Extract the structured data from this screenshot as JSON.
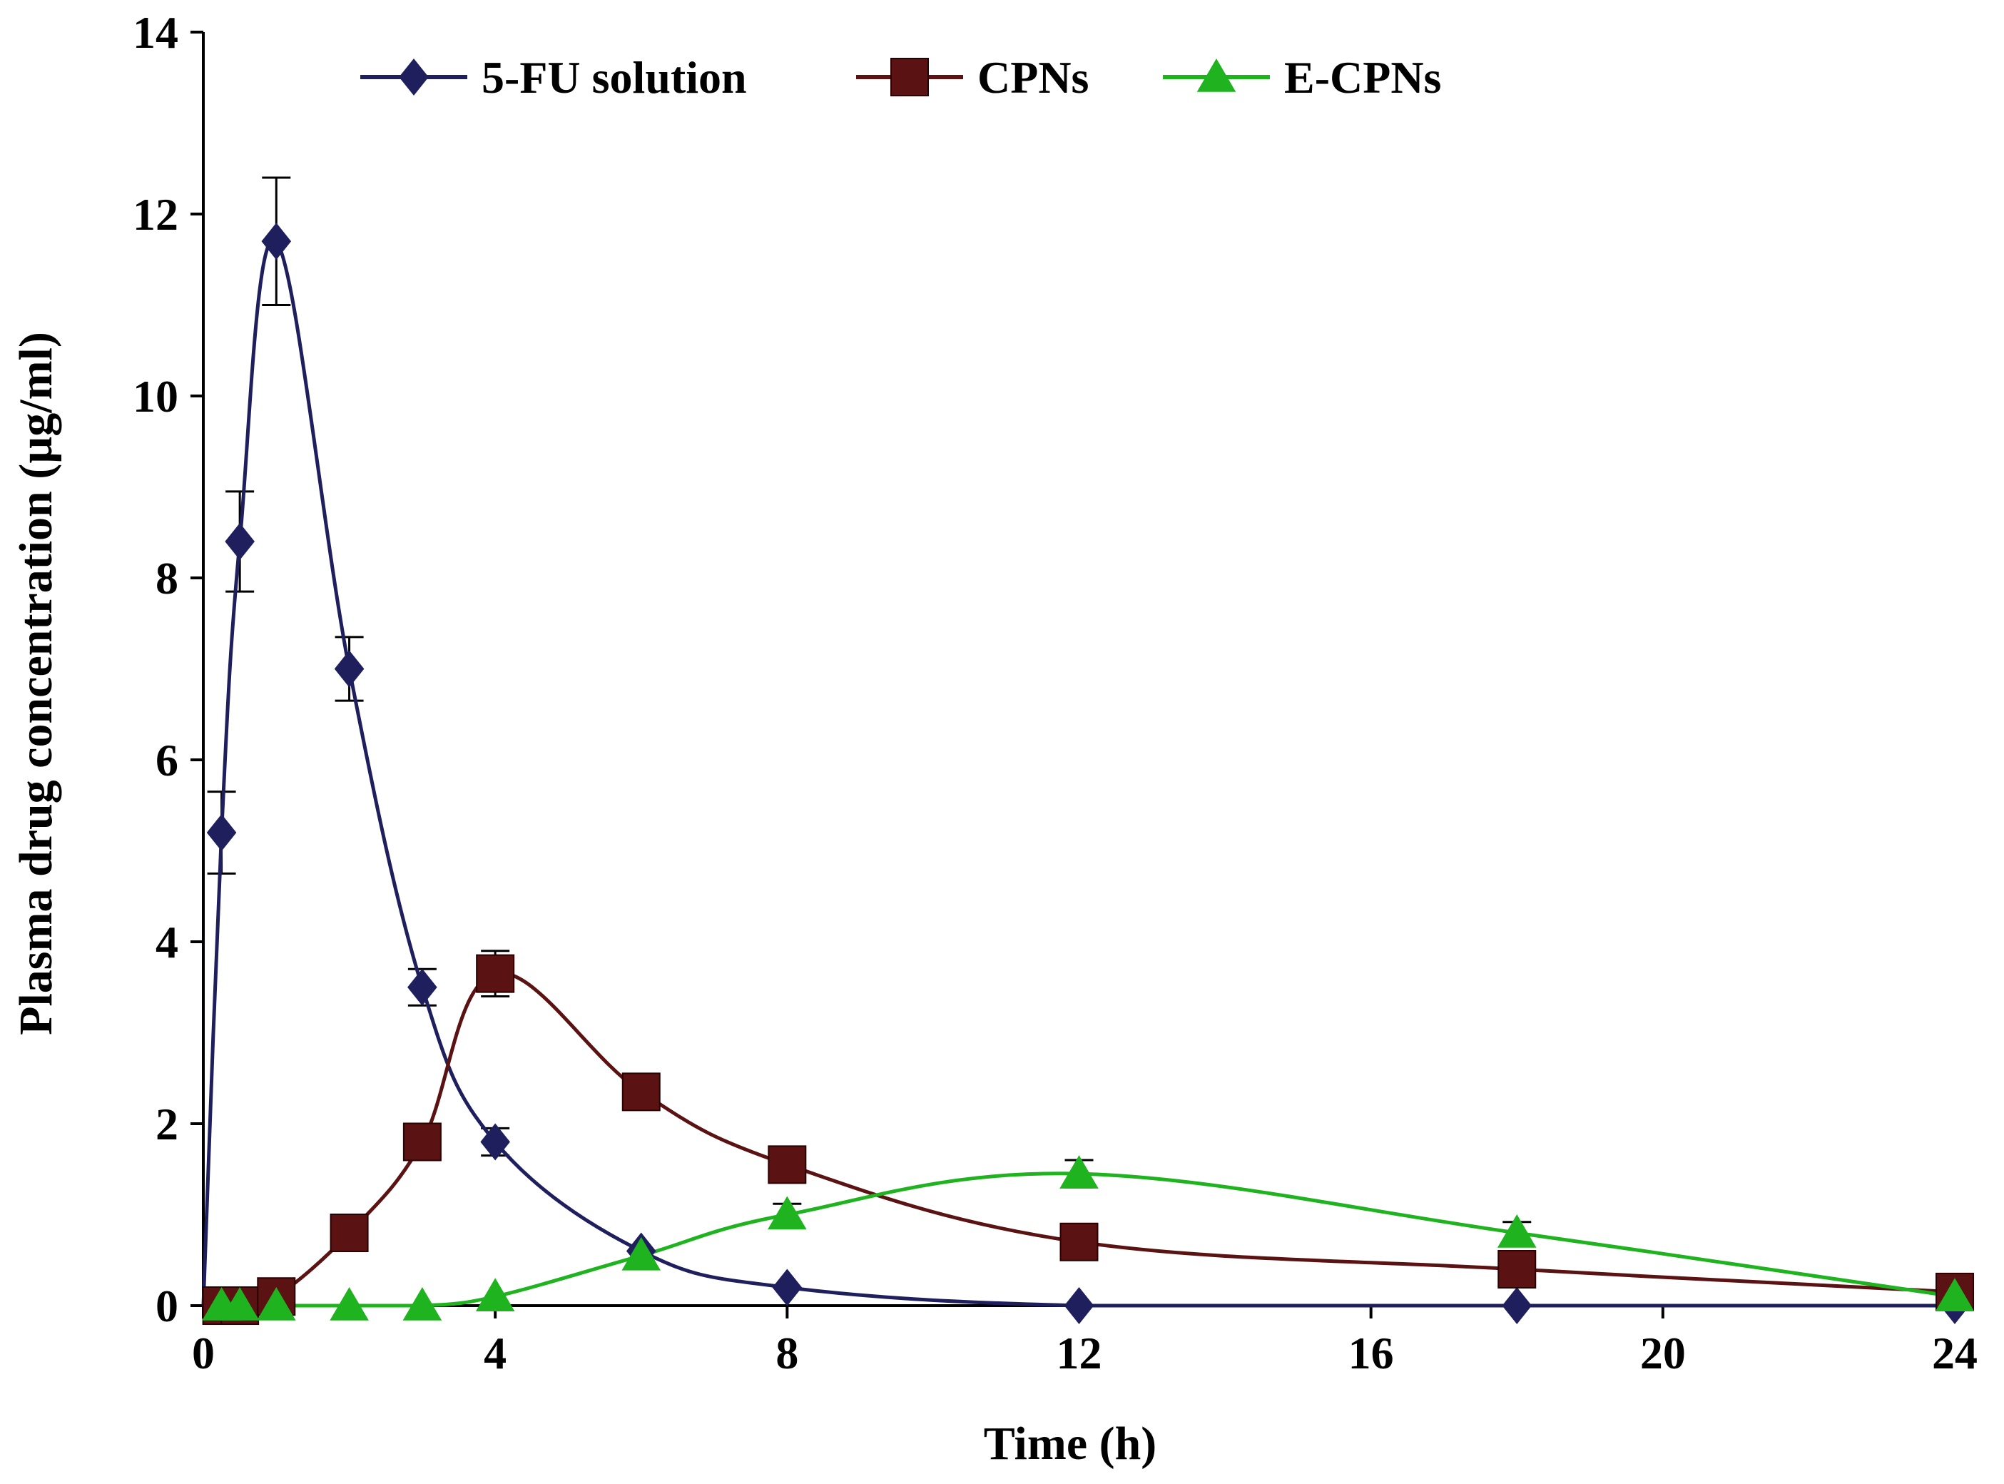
{
  "chart_data": {
    "type": "line",
    "title": "",
    "xlabel": "Time (h)",
    "ylabel": "Plasma drug concentration (µg/ml)",
    "xlim": [
      0,
      24
    ],
    "ylim": [
      0,
      14
    ],
    "xticks": [
      0,
      4,
      8,
      12,
      16,
      20,
      24
    ],
    "yticks": [
      0,
      2,
      4,
      6,
      8,
      10,
      12,
      14
    ],
    "grid": false,
    "legend_position": "top",
    "series": [
      {
        "name": "5-FU solution",
        "color": "#1f1f5e",
        "marker": "diamond",
        "x": [
          0,
          0.25,
          0.5,
          1,
          2,
          3,
          4,
          6,
          8,
          12,
          18,
          24
        ],
        "y": [
          0,
          5.2,
          8.4,
          11.7,
          7.0,
          3.5,
          1.8,
          0.6,
          0.2,
          0.0,
          0.0,
          0.0
        ],
        "err": [
          0,
          0.45,
          0.55,
          0.7,
          0.35,
          0.2,
          0.15,
          0,
          0,
          0,
          0,
          0
        ]
      },
      {
        "name": "CPNs",
        "color": "#5a1212",
        "marker": "square",
        "x": [
          0,
          0.25,
          0.5,
          1,
          2,
          3,
          4,
          6,
          8,
          12,
          18,
          24
        ],
        "y": [
          0,
          0,
          0,
          0.1,
          0.8,
          1.8,
          3.65,
          2.35,
          1.55,
          0.7,
          0.4,
          0.15
        ],
        "err": [
          0,
          0,
          0,
          0,
          0,
          0,
          0.25,
          0,
          0,
          0,
          0,
          0
        ]
      },
      {
        "name": "E-CPNs",
        "color": "#1fb31f",
        "marker": "triangle",
        "x": [
          0,
          0.25,
          0.5,
          1,
          2,
          3,
          4,
          6,
          8,
          12,
          18,
          24
        ],
        "y": [
          0,
          0,
          0,
          0,
          0,
          0,
          0.1,
          0.55,
          1.0,
          1.45,
          0.8,
          0.1
        ],
        "err": [
          0,
          0,
          0,
          0,
          0,
          0,
          0,
          0,
          0.12,
          0.15,
          0.12,
          0
        ]
      }
    ]
  }
}
